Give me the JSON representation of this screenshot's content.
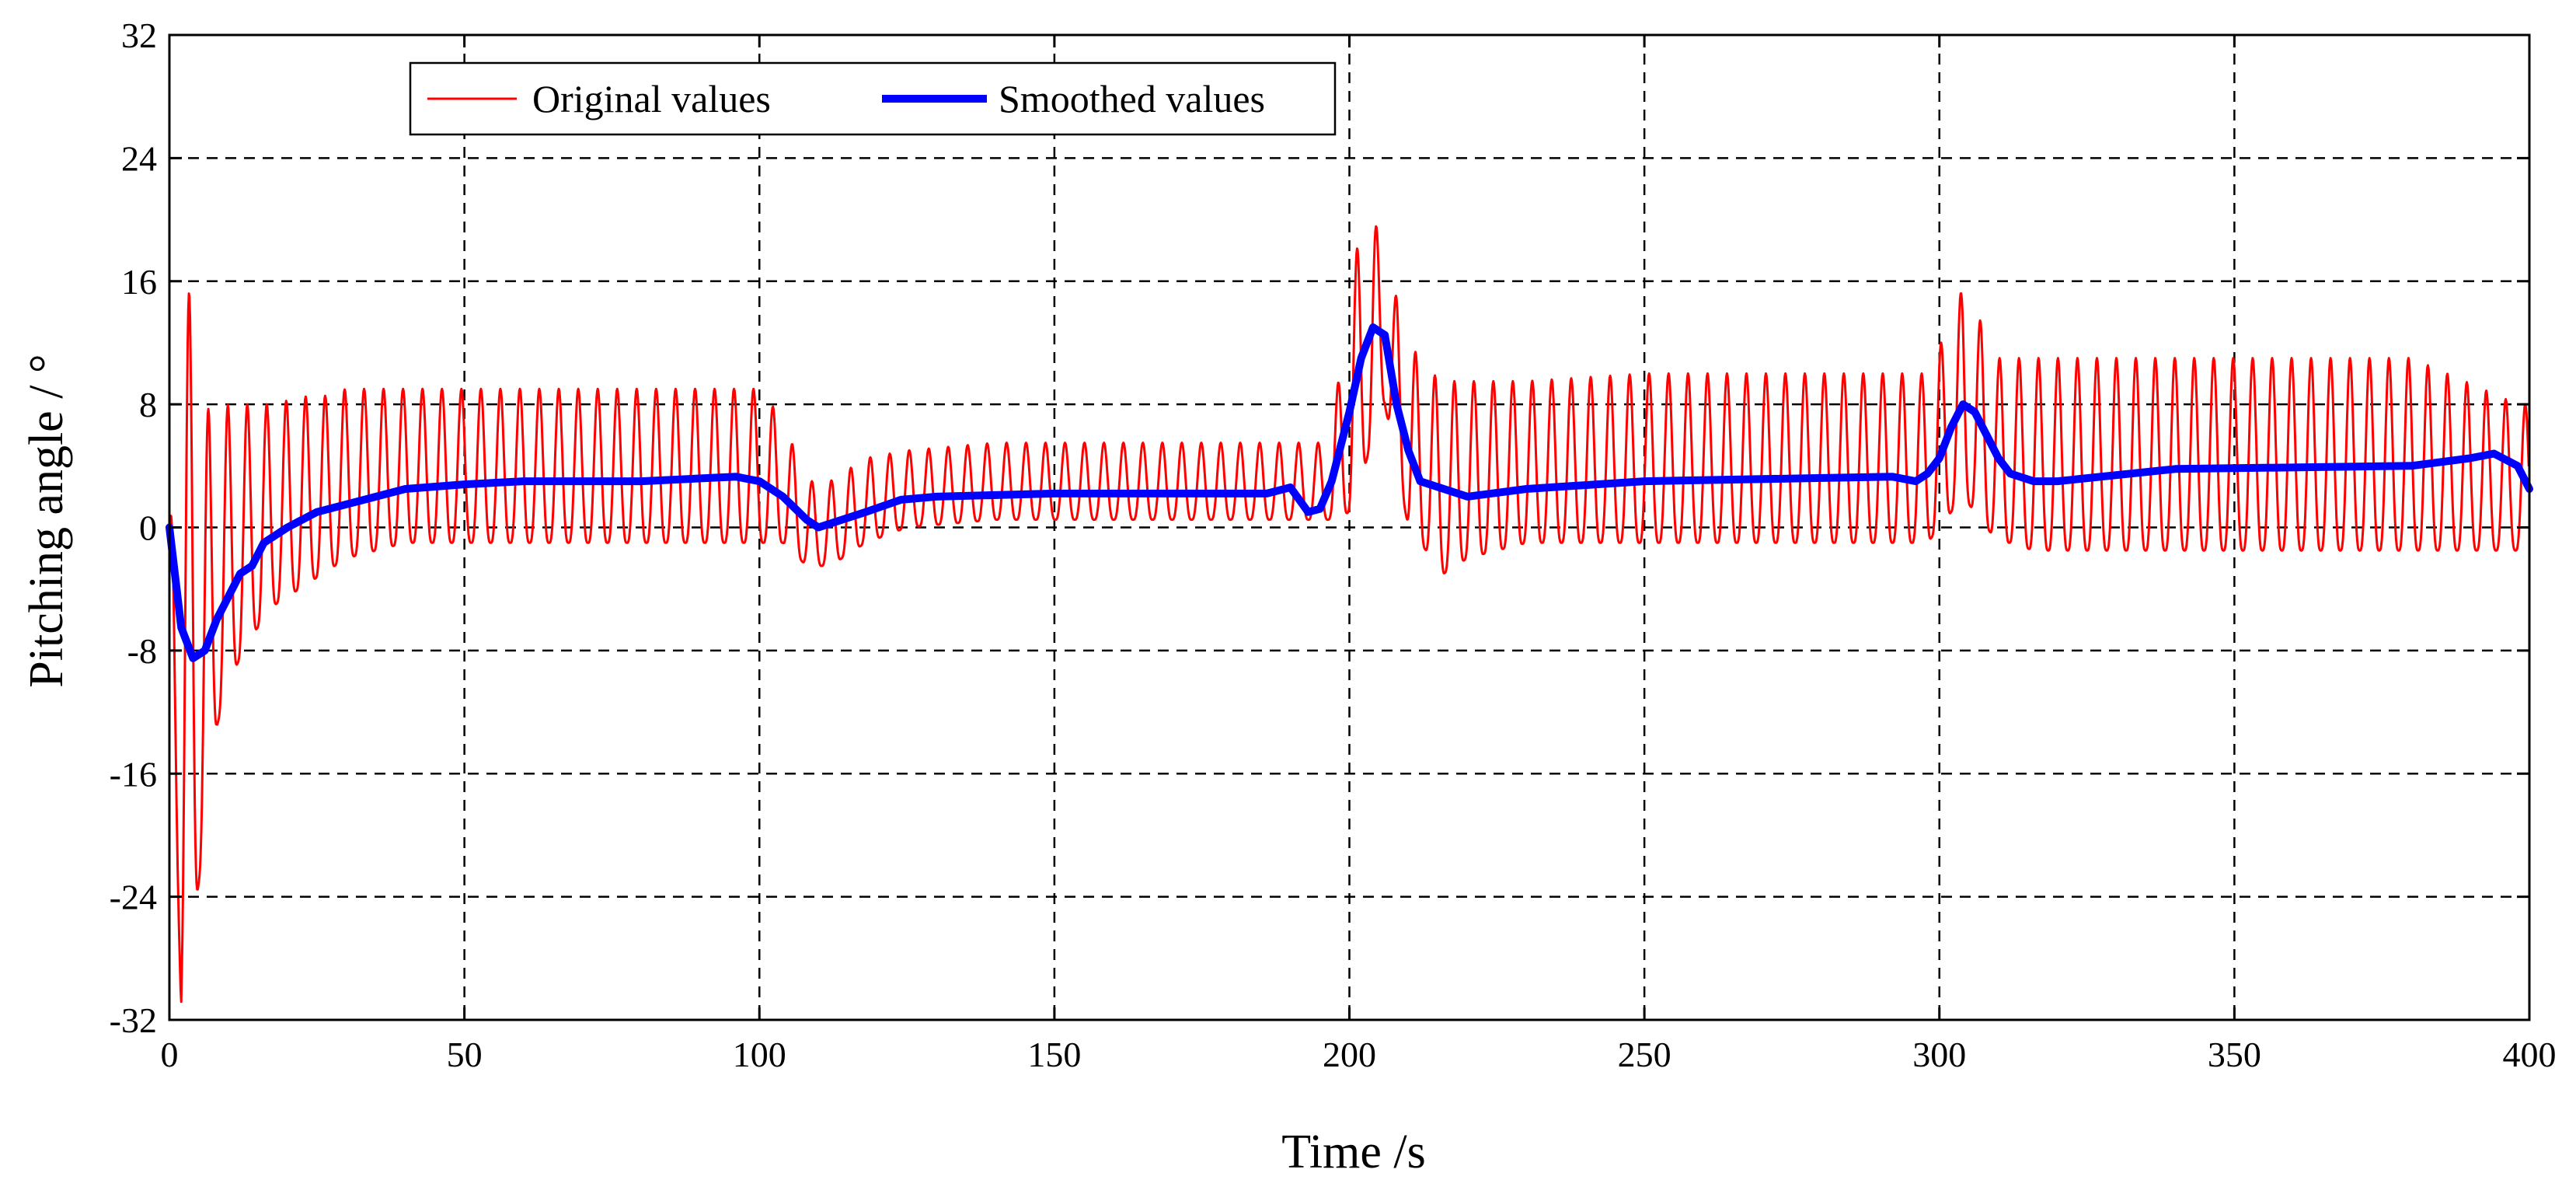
{
  "chart_data": {
    "type": "line",
    "title": "",
    "xlabel": "Time /s",
    "ylabel": "Pitching angle / °",
    "xlim": [
      0,
      400
    ],
    "ylim": [
      -32,
      32
    ],
    "x_ticks": [
      0,
      50,
      100,
      150,
      200,
      250,
      300,
      350,
      400
    ],
    "y_ticks": [
      -32,
      -24,
      -16,
      -8,
      0,
      8,
      16,
      24,
      32
    ],
    "x_tick_labels": [
      "0",
      "50",
      "100",
      "150",
      "200",
      "250",
      "300",
      "350",
      "400"
    ],
    "y_tick_labels": [
      "-32",
      "-24",
      "-16",
      "-8",
      "0",
      "8",
      "16",
      "24",
      "32"
    ],
    "grid": true,
    "legend_position": "top-left",
    "series": [
      {
        "name": "Original values",
        "color": "#ff0000",
        "style": "thin",
        "oscillation_period_s": 3.3,
        "envelope": {
          "x": [
            0,
            2,
            4,
            6,
            8,
            10,
            14,
            18,
            22,
            26,
            30,
            40,
            60,
            98,
            100,
            104,
            108,
            112,
            118,
            125,
            140,
            190,
            194,
            197,
            200,
            202,
            204,
            206,
            208,
            210,
            212,
            214,
            216,
            220,
            230,
            250,
            295,
            298,
            300,
            302,
            304,
            306,
            308,
            310,
            312,
            316,
            320,
            340,
            380,
            398,
            400
          ],
          "max": [
            0,
            10,
            18,
            8,
            7,
            8,
            8,
            8,
            8.5,
            8.5,
            9,
            9,
            9,
            9,
            9,
            7,
            3,
            3,
            4.5,
            5,
            5.5,
            5.5,
            5.5,
            5.5,
            16.5,
            19,
            21,
            16,
            15,
            12,
            11,
            10,
            9.5,
            9.5,
            9.5,
            10,
            10,
            10,
            12,
            12,
            16,
            13,
            14,
            11,
            11,
            11,
            11,
            11,
            11,
            8,
            8
          ],
          "min": [
            0,
            -32,
            -26,
            -20,
            -13,
            -10,
            -7,
            -5,
            -4,
            -3,
            -2,
            -1,
            -1,
            -1,
            -1,
            -1,
            -2.5,
            -2.5,
            -1,
            0,
            0.5,
            0.5,
            0.5,
            0.5,
            1,
            3,
            6,
            8,
            4,
            0,
            -1,
            -2,
            -3,
            -2,
            -1,
            -1,
            -1,
            -1,
            0,
            1,
            2,
            1,
            0,
            -1,
            -1,
            -1.5,
            -1.5,
            -1.5,
            -1.5,
            -1.5,
            -1.5
          ]
        }
      },
      {
        "name": "Smoothed values",
        "color": "#0000ff",
        "style": "thick",
        "x": [
          0,
          2,
          4,
          6,
          8,
          10,
          12,
          14,
          16,
          18,
          20,
          25,
          30,
          40,
          50,
          60,
          80,
          96,
          100,
          104,
          108,
          110,
          114,
          118,
          124,
          130,
          150,
          186,
          190,
          193,
          195,
          197,
          200,
          202,
          204,
          206,
          208,
          210,
          212,
          216,
          220,
          230,
          250,
          292,
          296,
          298,
          300,
          302,
          304,
          306,
          308,
          310,
          312,
          316,
          320,
          340,
          380,
          390,
          394,
          398,
          400
        ],
        "y": [
          0,
          -6.5,
          -8.5,
          -8,
          -6,
          -4.5,
          -3,
          -2.5,
          -1,
          -0.5,
          0,
          1,
          1.5,
          2.5,
          2.8,
          3,
          3,
          3.3,
          3,
          2,
          0.5,
          0,
          0.5,
          1,
          1.8,
          2,
          2.2,
          2.2,
          2.6,
          1,
          1.2,
          3,
          7.5,
          11,
          13,
          12.5,
          8,
          5,
          3,
          2.5,
          2,
          2.5,
          3,
          3.3,
          3,
          3.5,
          4.5,
          6.5,
          8,
          7.5,
          6,
          4.5,
          3.5,
          3,
          3,
          3.8,
          4,
          4.5,
          4.8,
          4,
          2.5
        ]
      }
    ]
  }
}
